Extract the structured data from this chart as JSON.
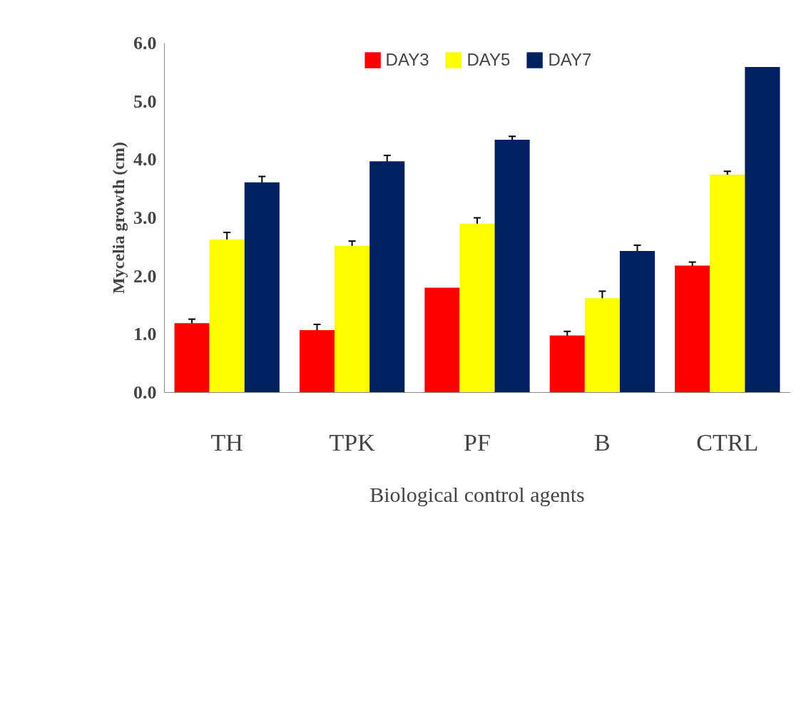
{
  "chart_data": {
    "type": "bar",
    "xlabel": "Biological control agents",
    "ylabel": "Mycelia growth (cm)",
    "categories": [
      "TH",
      "TPK",
      "PF",
      "B",
      "CTRL"
    ],
    "series": [
      {
        "name": "DAY3",
        "color": "#ff0000",
        "values": [
          1.19,
          1.07,
          1.8,
          0.98,
          2.18
        ],
        "errors": [
          0.07,
          0.1,
          null,
          0.07,
          0.06
        ]
      },
      {
        "name": "DAY5",
        "color": "#ffff00",
        "values": [
          2.63,
          2.52,
          2.9,
          1.62,
          3.74
        ],
        "errors": [
          0.12,
          0.08,
          0.1,
          0.12,
          0.06
        ]
      },
      {
        "name": "DAY7",
        "color": "#002060",
        "values": [
          3.61,
          3.97,
          4.34,
          2.43,
          5.59
        ],
        "errors": [
          0.1,
          0.1,
          0.06,
          0.1,
          null
        ]
      }
    ],
    "ylim": [
      0,
      6
    ],
    "yticks": [
      {
        "value": 0,
        "label": "0.0"
      },
      {
        "value": 1,
        "label": "1.0"
      },
      {
        "value": 2,
        "label": "2.0"
      },
      {
        "value": 3,
        "label": "3.0"
      },
      {
        "value": 4,
        "label": "4.0"
      },
      {
        "value": 5,
        "label": "5.0"
      },
      {
        "value": 6,
        "label": "6.0"
      }
    ],
    "legend": "top",
    "grid": false
  }
}
